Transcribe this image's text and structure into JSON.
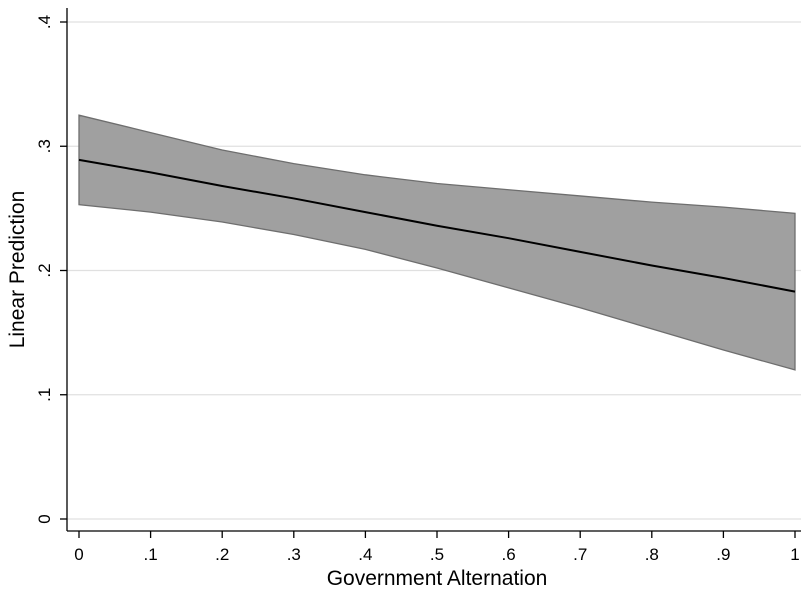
{
  "chart_data": {
    "type": "line",
    "xlabel": "Government Alternation",
    "ylabel": "Linear Prediction",
    "xlim": [
      0,
      1
    ],
    "ylim": [
      0,
      0.4
    ],
    "x_ticks": [
      {
        "value": 0,
        "label": "0"
      },
      {
        "value": 0.1,
        "label": ".1"
      },
      {
        "value": 0.2,
        "label": ".2"
      },
      {
        "value": 0.3,
        "label": ".3"
      },
      {
        "value": 0.4,
        "label": ".4"
      },
      {
        "value": 0.5,
        "label": ".5"
      },
      {
        "value": 0.6,
        "label": ".6"
      },
      {
        "value": 0.7,
        "label": ".7"
      },
      {
        "value": 0.8,
        "label": ".8"
      },
      {
        "value": 0.9,
        "label": ".9"
      },
      {
        "value": 1,
        "label": "1"
      }
    ],
    "y_ticks": [
      {
        "value": 0,
        "label": "0"
      },
      {
        "value": 0.1,
        "label": ".1"
      },
      {
        "value": 0.2,
        "label": ".2"
      },
      {
        "value": 0.3,
        "label": ".3"
      },
      {
        "value": 0.4,
        "label": ".4"
      }
    ],
    "grid": "horizontal",
    "series": [
      {
        "x": [
          0,
          0.1,
          0.2,
          0.3,
          0.4,
          0.5,
          0.6,
          0.7,
          0.8,
          0.9,
          1
        ],
        "y": [
          0.289,
          0.279,
          0.268,
          0.258,
          0.247,
          0.236,
          0.226,
          0.215,
          0.204,
          0.194,
          0.183
        ],
        "ci_lower": [
          0.253,
          0.247,
          0.239,
          0.229,
          0.217,
          0.202,
          0.186,
          0.17,
          0.153,
          0.136,
          0.12
        ],
        "ci_upper": [
          0.325,
          0.311,
          0.297,
          0.286,
          0.277,
          0.27,
          0.265,
          0.26,
          0.255,
          0.251,
          0.246
        ]
      }
    ],
    "colors": {
      "line": "#000000",
      "band_fill": "#a0a0a0",
      "band_edge": "#6e6e6e",
      "grid": "#e0e0e0",
      "axis": "#000000"
    }
  }
}
